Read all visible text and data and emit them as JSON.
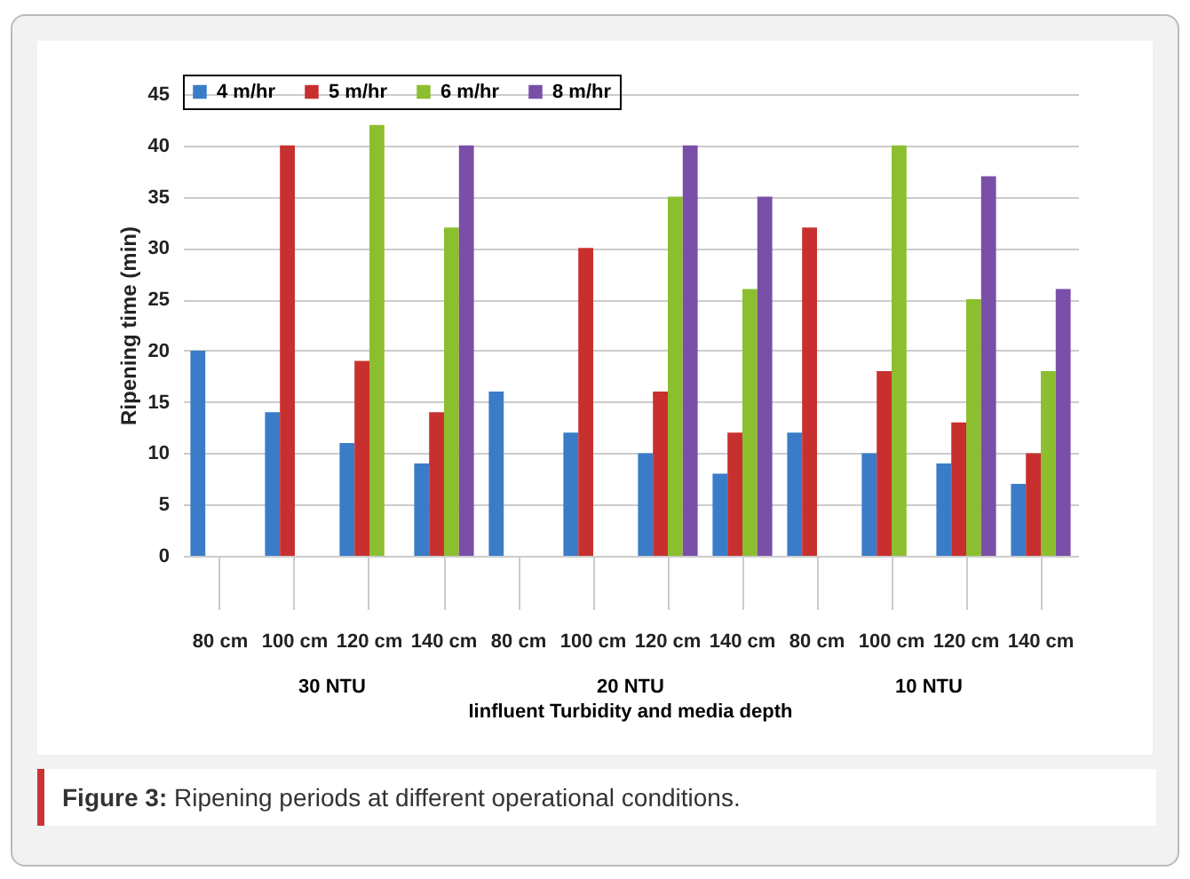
{
  "chart_data": {
    "type": "bar",
    "ylabel": "Ripening time (min)",
    "xlabel": "Iinfluent Turbidity and media depth",
    "categories": [
      "80 cm",
      "100 cm",
      "120 cm",
      "140 cm",
      "80 cm",
      "100 cm",
      "120 cm",
      "140 cm",
      "80 cm",
      "100 cm",
      "120 cm",
      "140 cm"
    ],
    "series": [
      {
        "name": "4 m/hr",
        "color": "#3a7cc8",
        "values": [
          20,
          14,
          11,
          9,
          16,
          12,
          10,
          8,
          12,
          10,
          9,
          7
        ]
      },
      {
        "name": "5 m/hr",
        "color": "#c8302f",
        "values": [
          null,
          40,
          19,
          14,
          null,
          30,
          16,
          12,
          32,
          18,
          13,
          10
        ]
      },
      {
        "name": "6 m/hr",
        "color": "#8cbf2f",
        "values": [
          null,
          null,
          42,
          32,
          null,
          null,
          35,
          26,
          null,
          40,
          25,
          18
        ]
      },
      {
        "name": "8 m/hr",
        "color": "#7a4fa8",
        "values": [
          null,
          null,
          null,
          40,
          null,
          null,
          40,
          35,
          null,
          null,
          37,
          26
        ]
      }
    ],
    "ylim": [
      0,
      45
    ],
    "yticks": [
      0,
      5,
      10,
      15,
      20,
      25,
      30,
      35,
      40,
      45
    ],
    "grid": "y",
    "legend": "top",
    "annotations": [
      "30 NTU",
      "20 NTU",
      "10 NTU",
      "Figure 3: Ripening periods at different operational conditions."
    ]
  }
}
